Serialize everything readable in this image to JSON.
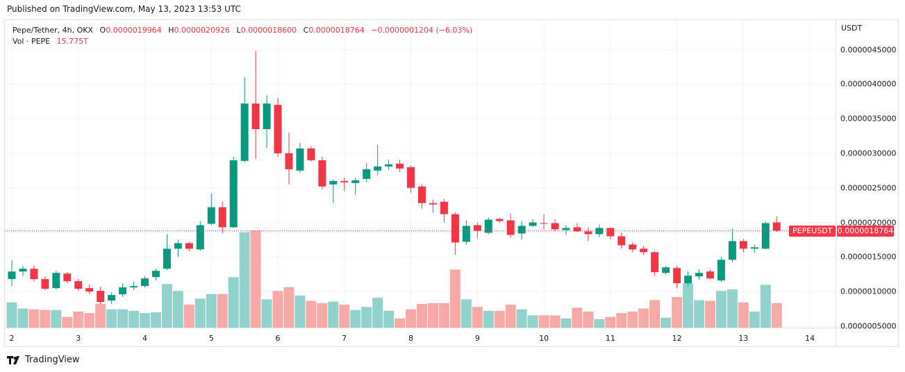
{
  "header": {
    "published": "Published on TradingView.com, May 13, 2023 13:53 UTC"
  },
  "legend": {
    "symbol": "Pepe/Tether, 4h, OKX",
    "o_label": "O",
    "o_value": "0.0000019964",
    "h_label": "H",
    "h_value": "0.0000020926",
    "l_label": "L",
    "l_value": "0.0000018600",
    "c_label": "C",
    "c_value": "0.0000018764",
    "change": "−0.0000001204 (−6.03%)",
    "vol_label": "Vol · PEPE",
    "vol_value": "15.775T"
  },
  "price_scale": {
    "currency": "USDT"
  },
  "last_price": {
    "value": 1.8764e-06,
    "label": "0.0000018764",
    "symbol": "PEPEUSDT"
  },
  "footer": {
    "brand": "TradingView"
  },
  "colors": {
    "up": "#089981",
    "down": "#f23645",
    "vol_up": "#92d2cc",
    "vol_down": "#f7a9a7",
    "grid": "#f0f3fa"
  },
  "chart_data": {
    "type": "candlestick",
    "title": "Pepe/Tether, 4h, OKX",
    "ylabel": "USDT",
    "ylim": [
      4.5e-07,
      4.6e-06
    ],
    "yticks": [
      {
        "value": 4.5e-06,
        "label": "0.0000045000"
      },
      {
        "value": 4e-06,
        "label": "0.0000040000"
      },
      {
        "value": 3.5e-06,
        "label": "0.0000035000"
      },
      {
        "value": 3e-06,
        "label": "0.0000030000"
      },
      {
        "value": 2.5e-06,
        "label": "0.0000025000"
      },
      {
        "value": 2e-06,
        "label": "0.0000020000"
      },
      {
        "value": 1.5e-06,
        "label": "0.0000015000"
      },
      {
        "value": 1e-06,
        "label": "0.0000010000"
      },
      {
        "value": 5e-07,
        "label": "0.0000005000"
      }
    ],
    "xticks": [
      {
        "bar": 0,
        "label": "2"
      },
      {
        "bar": 6,
        "label": "3"
      },
      {
        "bar": 12,
        "label": "4"
      },
      {
        "bar": 18,
        "label": "5"
      },
      {
        "bar": 24,
        "label": "6"
      },
      {
        "bar": 30,
        "label": "7"
      },
      {
        "bar": 36,
        "label": "8"
      },
      {
        "bar": 42,
        "label": "9"
      },
      {
        "bar": 48,
        "label": "10"
      },
      {
        "bar": 54,
        "label": "11"
      },
      {
        "bar": 60,
        "label": "12"
      },
      {
        "bar": 66,
        "label": "13"
      },
      {
        "bar": 72,
        "label": "14"
      }
    ],
    "volume_scale_max": 1.0,
    "candles": [
      {
        "o": 1.18,
        "h": 1.45,
        "l": 1.08,
        "c": 1.29,
        "v": 0.33
      },
      {
        "o": 1.29,
        "h": 1.37,
        "l": 1.22,
        "c": 1.33,
        "v": 0.25
      },
      {
        "o": 1.33,
        "h": 1.38,
        "l": 1.15,
        "c": 1.18,
        "v": 0.24
      },
      {
        "o": 1.18,
        "h": 1.22,
        "l": 1.02,
        "c": 1.04,
        "v": 0.23
      },
      {
        "o": 1.05,
        "h": 1.3,
        "l": 1.03,
        "c": 1.27,
        "v": 0.23
      },
      {
        "o": 1.26,
        "h": 1.28,
        "l": 1.12,
        "c": 1.15,
        "v": 0.14
      },
      {
        "o": 1.15,
        "h": 1.18,
        "l": 1.01,
        "c": 1.04,
        "v": 0.21
      },
      {
        "o": 1.05,
        "h": 1.1,
        "l": 0.96,
        "c": 1.0,
        "v": 0.19
      },
      {
        "o": 1.01,
        "h": 1.07,
        "l": 0.82,
        "c": 0.85,
        "v": 0.31
      },
      {
        "o": 0.87,
        "h": 0.99,
        "l": 0.82,
        "c": 0.95,
        "v": 0.24
      },
      {
        "o": 0.96,
        "h": 1.12,
        "l": 0.92,
        "c": 1.06,
        "v": 0.24
      },
      {
        "o": 1.06,
        "h": 1.14,
        "l": 1.02,
        "c": 1.08,
        "v": 0.22
      },
      {
        "o": 1.08,
        "h": 1.22,
        "l": 1.06,
        "c": 1.19,
        "v": 0.19
      },
      {
        "o": 1.21,
        "h": 1.33,
        "l": 1.16,
        "c": 1.3,
        "v": 0.2
      },
      {
        "o": 1.33,
        "h": 1.83,
        "l": 1.31,
        "c": 1.62,
        "v": 0.57
      },
      {
        "o": 1.62,
        "h": 1.75,
        "l": 1.5,
        "c": 1.7,
        "v": 0.48
      },
      {
        "o": 1.7,
        "h": 1.72,
        "l": 1.58,
        "c": 1.62,
        "v": 0.3
      },
      {
        "o": 1.61,
        "h": 2.02,
        "l": 1.59,
        "c": 1.96,
        "v": 0.38
      },
      {
        "o": 1.98,
        "h": 2.42,
        "l": 1.96,
        "c": 2.22,
        "v": 0.44
      },
      {
        "o": 2.22,
        "h": 2.3,
        "l": 1.84,
        "c": 1.93,
        "v": 0.44
      },
      {
        "o": 1.93,
        "h": 2.95,
        "l": 1.92,
        "c": 2.9,
        "v": 0.66
      },
      {
        "o": 2.89,
        "h": 4.1,
        "l": 2.87,
        "c": 3.72,
        "v": 1.25
      },
      {
        "o": 3.72,
        "h": 4.48,
        "l": 2.92,
        "c": 3.35,
        "v": 1.27
      },
      {
        "o": 3.35,
        "h": 3.84,
        "l": 3.08,
        "c": 3.72,
        "v": 0.37
      },
      {
        "o": 3.7,
        "h": 3.8,
        "l": 2.95,
        "c": 3.0,
        "v": 0.48
      },
      {
        "o": 3.0,
        "h": 3.3,
        "l": 2.55,
        "c": 2.77,
        "v": 0.53
      },
      {
        "o": 2.75,
        "h": 3.15,
        "l": 2.72,
        "c": 3.07,
        "v": 0.42
      },
      {
        "o": 3.07,
        "h": 3.1,
        "l": 2.88,
        "c": 2.9,
        "v": 0.35
      },
      {
        "o": 2.9,
        "h": 2.95,
        "l": 2.48,
        "c": 2.52,
        "v": 0.32
      },
      {
        "o": 2.55,
        "h": 2.62,
        "l": 2.28,
        "c": 2.6,
        "v": 0.34
      },
      {
        "o": 2.6,
        "h": 2.65,
        "l": 2.45,
        "c": 2.58,
        "v": 0.3
      },
      {
        "o": 2.57,
        "h": 2.65,
        "l": 2.4,
        "c": 2.61,
        "v": 0.23
      },
      {
        "o": 2.63,
        "h": 2.86,
        "l": 2.58,
        "c": 2.77,
        "v": 0.27
      },
      {
        "o": 2.75,
        "h": 3.12,
        "l": 2.68,
        "c": 2.81,
        "v": 0.39
      },
      {
        "o": 2.81,
        "h": 2.91,
        "l": 2.76,
        "c": 2.84,
        "v": 0.22
      },
      {
        "o": 2.85,
        "h": 2.91,
        "l": 2.73,
        "c": 2.78,
        "v": 0.12
      },
      {
        "o": 2.8,
        "h": 2.82,
        "l": 2.43,
        "c": 2.5,
        "v": 0.24
      },
      {
        "o": 2.52,
        "h": 2.55,
        "l": 2.2,
        "c": 2.28,
        "v": 0.31
      },
      {
        "o": 2.28,
        "h": 2.33,
        "l": 2.14,
        "c": 2.26,
        "v": 0.32
      },
      {
        "o": 2.3,
        "h": 2.34,
        "l": 2.0,
        "c": 2.12,
        "v": 0.32
      },
      {
        "o": 2.12,
        "h": 2.15,
        "l": 1.53,
        "c": 1.71,
        "v": 0.76
      },
      {
        "o": 1.72,
        "h": 2.03,
        "l": 1.68,
        "c": 1.95,
        "v": 0.37
      },
      {
        "o": 1.96,
        "h": 2.0,
        "l": 1.77,
        "c": 1.88,
        "v": 0.27
      },
      {
        "o": 1.85,
        "h": 2.07,
        "l": 1.83,
        "c": 2.04,
        "v": 0.22
      },
      {
        "o": 2.05,
        "h": 2.07,
        "l": 1.99,
        "c": 2.02,
        "v": 0.22
      },
      {
        "o": 2.03,
        "h": 2.13,
        "l": 1.78,
        "c": 1.82,
        "v": 0.3
      },
      {
        "o": 1.84,
        "h": 2.02,
        "l": 1.75,
        "c": 1.95,
        "v": 0.24
      },
      {
        "o": 1.95,
        "h": 2.05,
        "l": 1.94,
        "c": 2.0,
        "v": 0.16
      },
      {
        "o": 1.99,
        "h": 2.12,
        "l": 1.9,
        "c": 1.98,
        "v": 0.16
      },
      {
        "o": 1.99,
        "h": 2.05,
        "l": 1.87,
        "c": 1.9,
        "v": 0.16
      },
      {
        "o": 1.89,
        "h": 1.96,
        "l": 1.82,
        "c": 1.92,
        "v": 0.12
      },
      {
        "o": 1.93,
        "h": 1.99,
        "l": 1.86,
        "c": 1.87,
        "v": 0.26
      },
      {
        "o": 1.87,
        "h": 1.93,
        "l": 1.73,
        "c": 1.83,
        "v": 0.21
      },
      {
        "o": 1.83,
        "h": 1.97,
        "l": 1.79,
        "c": 1.92,
        "v": 0.11
      },
      {
        "o": 1.92,
        "h": 1.93,
        "l": 1.76,
        "c": 1.8,
        "v": 0.14
      },
      {
        "o": 1.8,
        "h": 1.85,
        "l": 1.62,
        "c": 1.67,
        "v": 0.19
      },
      {
        "o": 1.68,
        "h": 1.71,
        "l": 1.57,
        "c": 1.61,
        "v": 0.21
      },
      {
        "o": 1.62,
        "h": 1.66,
        "l": 1.53,
        "c": 1.57,
        "v": 0.25
      },
      {
        "o": 1.57,
        "h": 1.59,
        "l": 1.23,
        "c": 1.28,
        "v": 0.36
      },
      {
        "o": 1.27,
        "h": 1.37,
        "l": 1.25,
        "c": 1.35,
        "v": 0.13
      },
      {
        "o": 1.34,
        "h": 1.37,
        "l": 1.05,
        "c": 1.12,
        "v": 0.4
      },
      {
        "o": 1.12,
        "h": 1.29,
        "l": 1.08,
        "c": 1.23,
        "v": 0.58
      },
      {
        "o": 1.22,
        "h": 1.32,
        "l": 1.17,
        "c": 1.27,
        "v": 0.36
      },
      {
        "o": 1.29,
        "h": 1.32,
        "l": 1.18,
        "c": 1.19,
        "v": 0.35
      },
      {
        "o": 1.16,
        "h": 1.5,
        "l": 1.14,
        "c": 1.46,
        "v": 0.48
      },
      {
        "o": 1.46,
        "h": 1.91,
        "l": 1.43,
        "c": 1.73,
        "v": 0.5
      },
      {
        "o": 1.73,
        "h": 1.76,
        "l": 1.57,
        "c": 1.62,
        "v": 0.33
      },
      {
        "o": 1.62,
        "h": 1.68,
        "l": 1.56,
        "c": 1.64,
        "v": 0.21
      },
      {
        "o": 1.62,
        "h": 2.01,
        "l": 1.61,
        "c": 1.99,
        "v": 0.56
      },
      {
        "o": 2.0,
        "h": 2.09,
        "l": 1.86,
        "c": 1.88,
        "v": 0.32
      }
    ]
  }
}
